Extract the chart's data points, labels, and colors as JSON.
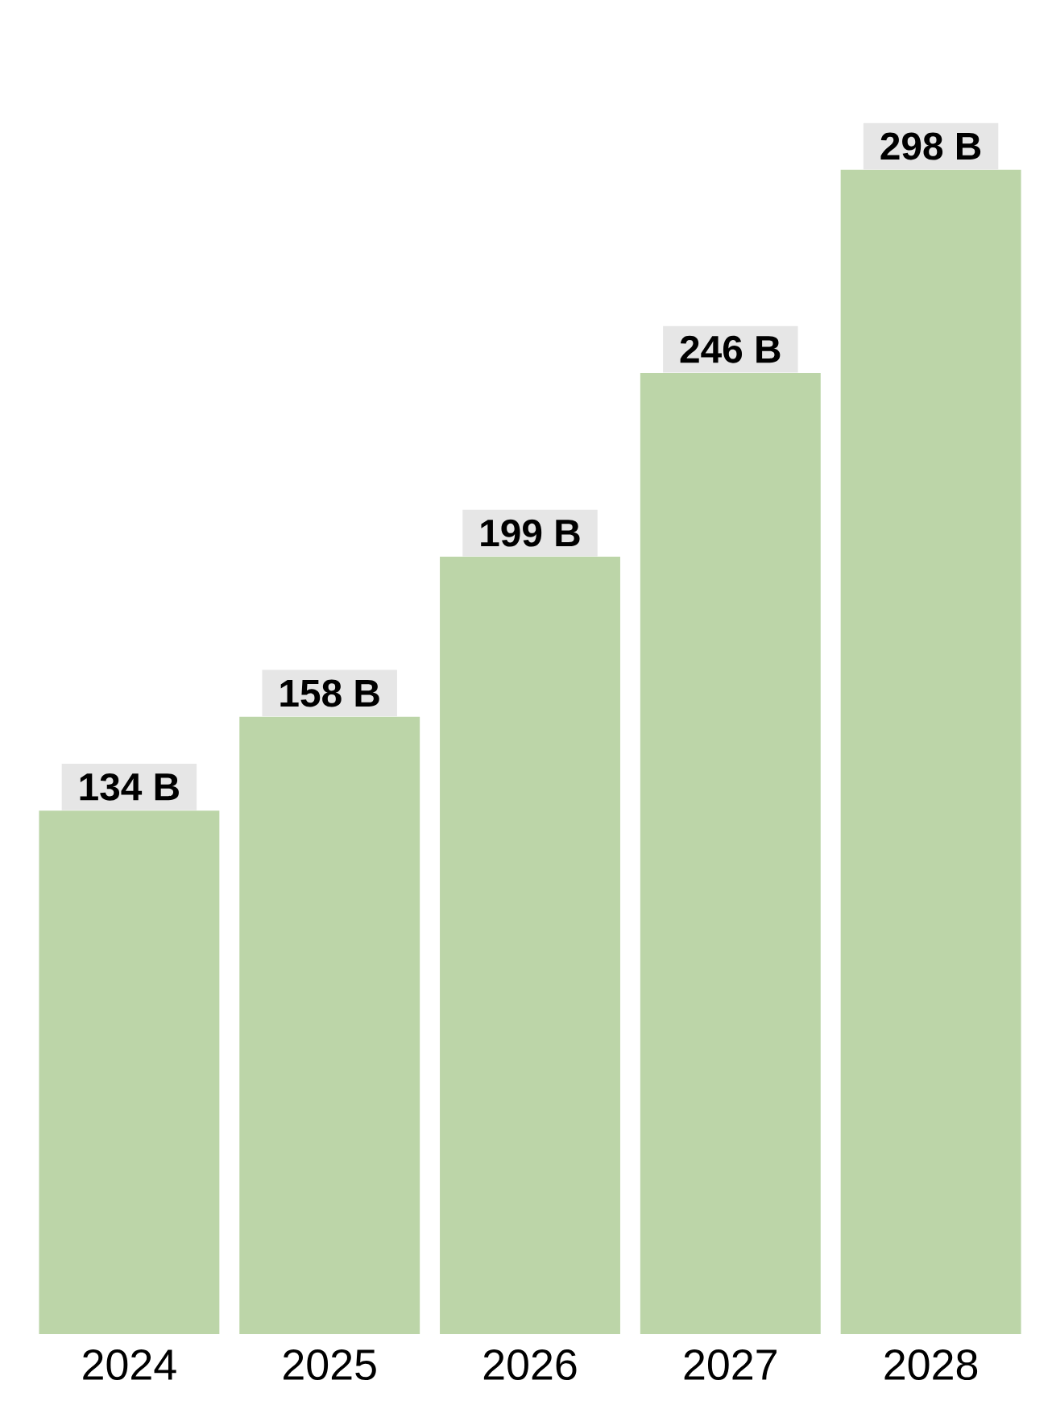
{
  "chart_data": {
    "type": "bar",
    "categories": [
      "2024",
      "2025",
      "2026",
      "2027",
      "2028"
    ],
    "values": [
      134,
      158,
      199,
      246,
      298
    ],
    "value_labels": [
      "134 B",
      "158 B",
      "199 B",
      "246 B",
      "298 B"
    ],
    "color": "#bcd5a8"
  }
}
